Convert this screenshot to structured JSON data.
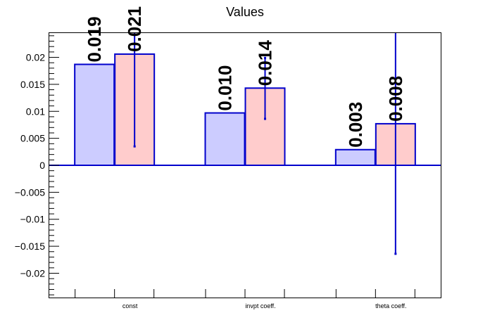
{
  "chart_data": {
    "type": "bar",
    "title": "Values",
    "xlabel": "",
    "ylabel": "",
    "categories": [
      "const",
      "invpt coeff.",
      "theta coeff."
    ],
    "ylim": [
      -0.0245,
      0.0245
    ],
    "yticks": [
      -0.02,
      -0.015,
      -0.01,
      -0.005,
      0,
      0.005,
      0.01,
      0.015,
      0.02
    ],
    "ytick_labels": [
      "−0.02",
      "−0.015",
      "−0.01",
      "−0.005",
      "0",
      "0.005",
      "0.01",
      "0.015",
      "0.02"
    ],
    "grid": false,
    "legend": "none",
    "series": [
      {
        "color": "#ccccff",
        "edge_color": "#0000cc",
        "values": [
          0.0187,
          0.0097,
          0.0029
        ],
        "labels": [
          "0.019",
          "0.010",
          "0.003"
        ]
      },
      {
        "color": "#ffcccc",
        "edge_color": "#0000cc",
        "values": [
          0.0206,
          0.0143,
          0.0077
        ],
        "labels": [
          "0.021",
          "0.014",
          "0.008"
        ],
        "errors": [
          [
            0.0035,
            0.0245
          ],
          [
            0.0086,
            0.0199
          ],
          [
            -0.0164,
            0.0245
          ]
        ]
      }
    ]
  }
}
